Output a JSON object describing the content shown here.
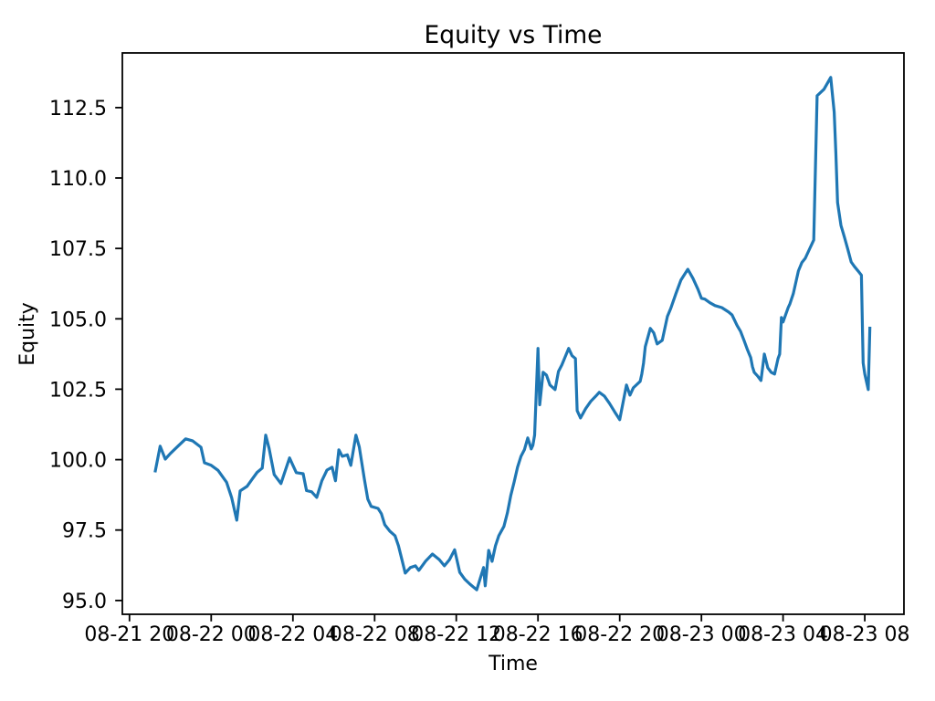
{
  "chart_data": {
    "type": "line",
    "title": "Equity vs Time",
    "xlabel": "Time",
    "ylabel": "Equity",
    "grid": false,
    "legend": null,
    "xlim": [
      "08-21 19:39",
      "08-23 09:55"
    ],
    "ylim": [
      94.51,
      114.44
    ],
    "xtick_labels": [
      "08-21 20",
      "08-22 00",
      "08-22 04",
      "08-22 08",
      "08-22 12",
      "08-22 16",
      "08-22 20",
      "08-23 00",
      "08-23 04",
      "08-23 08"
    ],
    "ytick_values": [
      95.0,
      97.5,
      100.0,
      102.5,
      105.0,
      107.5,
      110.0,
      112.5
    ],
    "ytick_labels": [
      "95.0",
      "97.5",
      "100.0",
      "102.5",
      "105.0",
      "107.5",
      "110.0",
      "112.5"
    ],
    "series": [
      {
        "name": "Equity",
        "color": "#1f77b4",
        "x": [
          "08-21 21:15",
          "08-21 21:30",
          "08-21 21:45",
          "08-21 22:00",
          "08-21 22:20",
          "08-21 22:45",
          "08-21 23:05",
          "08-21 23:30",
          "08-21 23:40",
          "08-22 00:00",
          "08-22 00:20",
          "08-22 00:45",
          "08-22 01:00",
          "08-22 01:15",
          "08-22 01:25",
          "08-22 01:45",
          "08-22 02:00",
          "08-22 02:15",
          "08-22 02:30",
          "08-22 02:40",
          "08-22 02:50",
          "08-22 03:05",
          "08-22 03:25",
          "08-22 03:50",
          "08-22 04:00",
          "08-22 04:10",
          "08-22 04:30",
          "08-22 04:40",
          "08-22 04:55",
          "08-22 05:10",
          "08-22 05:25",
          "08-22 05:40",
          "08-22 05:55",
          "08-22 06:05",
          "08-22 06:15",
          "08-22 06:25",
          "08-22 06:40",
          "08-22 06:50",
          "08-22 07:05",
          "08-22 07:15",
          "08-22 07:30",
          "08-22 07:40",
          "08-22 07:50",
          "08-22 08:10",
          "08-22 08:20",
          "08-22 08:30",
          "08-22 08:45",
          "08-22 09:00",
          "08-22 09:10",
          "08-22 09:20",
          "08-22 09:30",
          "08-22 09:45",
          "08-22 10:00",
          "08-22 10:10",
          "08-22 10:30",
          "08-22 10:50",
          "08-22 11:10",
          "08-22 11:25",
          "08-22 11:40",
          "08-22 11:55",
          "08-22 12:10",
          "08-22 12:25",
          "08-22 12:40",
          "08-22 13:00",
          "08-22 13:20",
          "08-22 13:25",
          "08-22 13:35",
          "08-22 13:45",
          "08-22 13:55",
          "08-22 14:05",
          "08-22 14:20",
          "08-22 14:30",
          "08-22 14:40",
          "08-22 14:50",
          "08-22 15:00",
          "08-22 15:10",
          "08-22 15:20",
          "08-22 15:30",
          "08-22 15:40",
          "08-22 15:45",
          "08-22 15:50",
          "08-22 16:00",
          "08-22 16:05",
          "08-22 16:15",
          "08-22 16:25",
          "08-22 16:35",
          "08-22 16:50",
          "08-22 17:00",
          "08-22 17:10",
          "08-22 17:30",
          "08-22 17:40",
          "08-22 17:50",
          "08-22 17:55",
          "08-22 18:05",
          "08-22 18:20",
          "08-22 18:35",
          "08-22 18:50",
          "08-22 19:00",
          "08-22 19:15",
          "08-22 19:30",
          "08-22 19:45",
          "08-22 20:00",
          "08-22 20:20",
          "08-22 20:30",
          "08-22 20:40",
          "08-22 21:00",
          "08-22 21:05",
          "08-22 21:10",
          "08-22 21:15",
          "08-22 21:30",
          "08-22 21:40",
          "08-22 21:50",
          "08-22 22:05",
          "08-22 22:20",
          "08-22 22:30",
          "08-22 22:45",
          "08-22 23:00",
          "08-22 23:20",
          "08-22 23:35",
          "08-22 23:50",
          "08-23 00:00",
          "08-23 00:10",
          "08-23 00:25",
          "08-23 00:40",
          "08-23 01:00",
          "08-23 01:20",
          "08-23 01:30",
          "08-23 01:45",
          "08-23 01:55",
          "08-23 02:05",
          "08-23 02:15",
          "08-23 02:25",
          "08-23 02:30",
          "08-23 02:35",
          "08-23 02:45",
          "08-23 02:55",
          "08-23 03:05",
          "08-23 03:15",
          "08-23 03:25",
          "08-23 03:35",
          "08-23 03:45",
          "08-23 03:50",
          "08-23 03:55",
          "08-23 04:00",
          "08-23 04:15",
          "08-23 04:20",
          "08-23 04:30",
          "08-23 04:45",
          "08-23 04:55",
          "08-23 05:05",
          "08-23 05:30",
          "08-23 05:40",
          "08-23 06:00",
          "08-23 06:20",
          "08-23 06:30",
          "08-23 06:35",
          "08-23 06:40",
          "08-23 06:50",
          "08-23 07:00",
          "08-23 07:10",
          "08-23 07:20",
          "08-23 07:30",
          "08-23 07:40",
          "08-23 07:50",
          "08-23 07:55",
          "08-23 08:00",
          "08-23 08:10",
          "08-23 08:15"
        ],
        "y": [
          99.55,
          100.48,
          100.02,
          100.22,
          100.45,
          100.74,
          100.67,
          100.44,
          99.89,
          99.8,
          99.62,
          99.2,
          98.65,
          97.85,
          98.89,
          99.05,
          99.3,
          99.55,
          99.7,
          100.87,
          100.4,
          99.47,
          99.15,
          100.06,
          99.8,
          99.54,
          99.5,
          98.9,
          98.86,
          98.66,
          99.25,
          99.63,
          99.73,
          99.25,
          100.35,
          100.12,
          100.17,
          99.8,
          100.87,
          100.45,
          99.3,
          98.6,
          98.34,
          98.27,
          98.08,
          97.69,
          97.46,
          97.3,
          96.94,
          96.46,
          95.97,
          96.17,
          96.23,
          96.07,
          96.4,
          96.65,
          96.45,
          96.23,
          96.45,
          96.8,
          96.0,
          95.75,
          95.58,
          95.38,
          96.17,
          95.52,
          96.78,
          96.39,
          96.94,
          97.3,
          97.63,
          98.11,
          98.73,
          99.21,
          99.73,
          100.12,
          100.35,
          100.77,
          100.38,
          100.51,
          100.87,
          103.95,
          101.95,
          103.1,
          103.0,
          102.65,
          102.49,
          103.13,
          103.36,
          103.95,
          103.69,
          103.59,
          101.74,
          101.48,
          101.81,
          102.07,
          102.26,
          102.39,
          102.26,
          102.0,
          101.7,
          101.42,
          102.65,
          102.29,
          102.55,
          102.78,
          103.04,
          103.43,
          104.01,
          104.66,
          104.5,
          104.11,
          104.24,
          105.08,
          105.37,
          105.89,
          106.38,
          106.76,
          106.44,
          106.05,
          105.73,
          105.7,
          105.57,
          105.47,
          105.4,
          105.24,
          105.14,
          104.76,
          104.56,
          104.24,
          103.91,
          103.62,
          103.3,
          103.1,
          102.97,
          102.81,
          103.75,
          103.26,
          103.1,
          103.04,
          103.59,
          103.75,
          105.05,
          104.89,
          105.4,
          105.53,
          105.89,
          106.7,
          107.0,
          107.15,
          107.8,
          112.92,
          113.15,
          113.57,
          112.34,
          110.91,
          109.13,
          108.32,
          107.9,
          107.47,
          107.02,
          106.85,
          106.7,
          106.55,
          103.43,
          103.04,
          102.49,
          104.72
        ]
      }
    ]
  }
}
